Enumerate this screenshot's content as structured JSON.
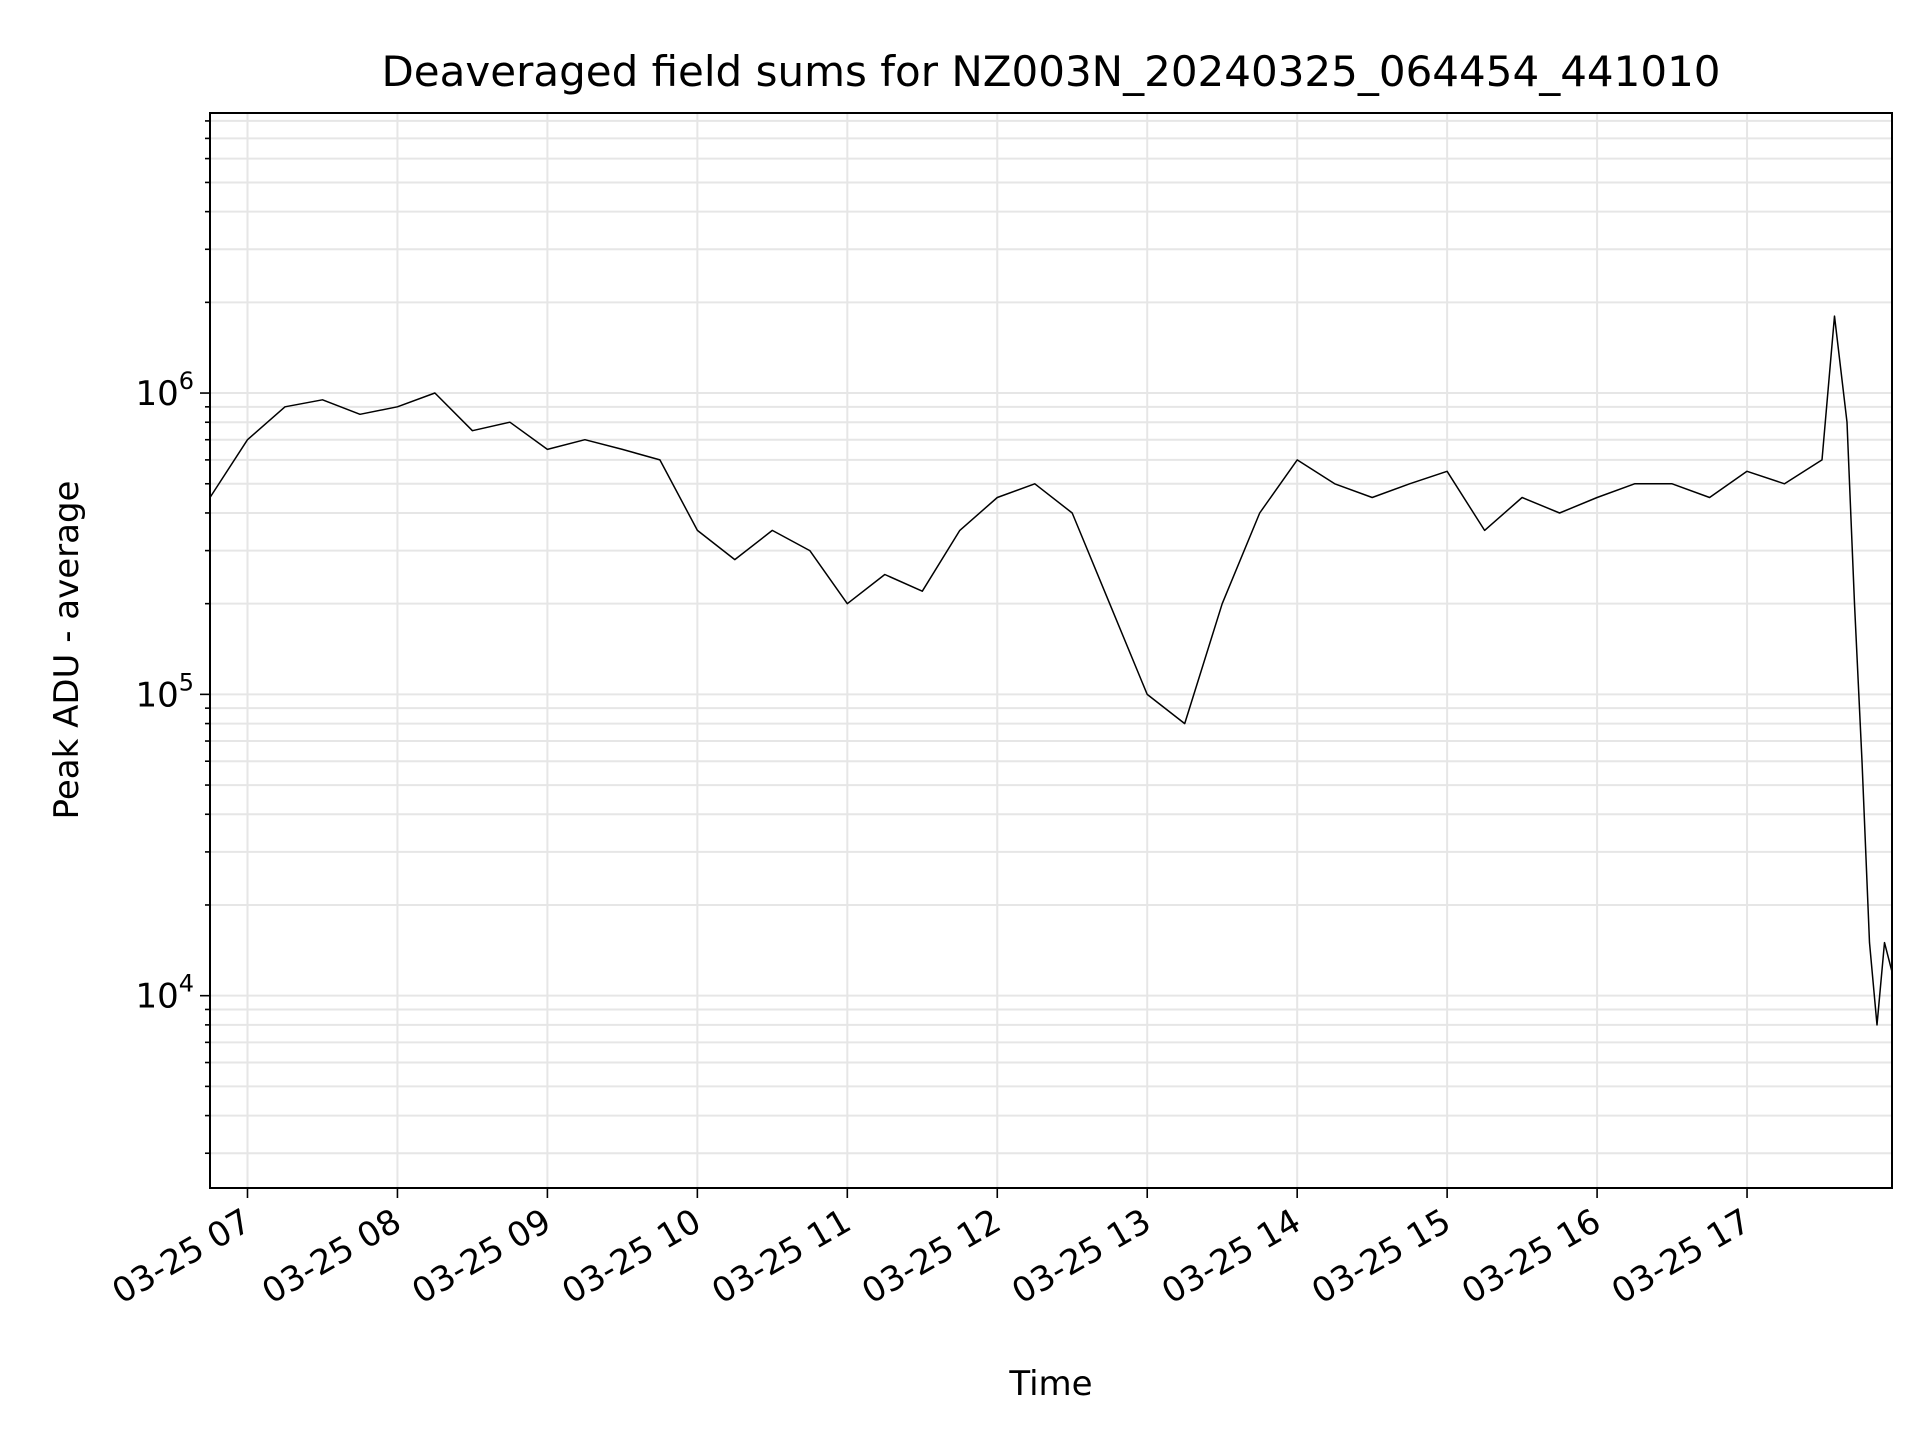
{
  "chart_data": {
    "type": "line",
    "title": "Deaveraged field sums for NZ003N_20240325_064454_441010",
    "xlabel": "Time",
    "ylabel": "Peak ADU - average",
    "y_scale": "log",
    "ylim": [
      2300,
      8500000
    ],
    "xlim": [
      "2024-03-25 06:45",
      "2024-03-25 17:58"
    ],
    "grid": true,
    "line_color": "#000000",
    "x_ticks": [
      {
        "value": "2024-03-25 07:00",
        "label": "03-25 07"
      },
      {
        "value": "2024-03-25 08:00",
        "label": "03-25 08"
      },
      {
        "value": "2024-03-25 09:00",
        "label": "03-25 09"
      },
      {
        "value": "2024-03-25 10:00",
        "label": "03-25 10"
      },
      {
        "value": "2024-03-25 11:00",
        "label": "03-25 11"
      },
      {
        "value": "2024-03-25 12:00",
        "label": "03-25 12"
      },
      {
        "value": "2024-03-25 13:00",
        "label": "03-25 13"
      },
      {
        "value": "2024-03-25 14:00",
        "label": "03-25 14"
      },
      {
        "value": "2024-03-25 15:00",
        "label": "03-25 15"
      },
      {
        "value": "2024-03-25 16:00",
        "label": "03-25 16"
      },
      {
        "value": "2024-03-25 17:00",
        "label": "03-25 17"
      }
    ],
    "y_ticks": [
      {
        "value": 10000,
        "base": "10",
        "exp": "4"
      },
      {
        "value": 100000,
        "base": "10",
        "exp": "5"
      },
      {
        "value": 1000000,
        "base": "10",
        "exp": "6"
      }
    ],
    "series": [
      {
        "x": [
          "2024-03-25 06:45",
          "2024-03-25 07:00",
          "2024-03-25 07:15",
          "2024-03-25 07:30",
          "2024-03-25 07:45",
          "2024-03-25 08:00",
          "2024-03-25 08:15",
          "2024-03-25 08:30",
          "2024-03-25 08:45",
          "2024-03-25 09:00",
          "2024-03-25 09:15",
          "2024-03-25 09:30",
          "2024-03-25 09:45",
          "2024-03-25 10:00",
          "2024-03-25 10:15",
          "2024-03-25 10:30",
          "2024-03-25 10:45",
          "2024-03-25 11:00",
          "2024-03-25 11:15",
          "2024-03-25 11:30",
          "2024-03-25 11:45",
          "2024-03-25 12:00",
          "2024-03-25 12:15",
          "2024-03-25 12:30",
          "2024-03-25 12:45",
          "2024-03-25 13:00",
          "2024-03-25 13:15",
          "2024-03-25 13:30",
          "2024-03-25 13:45",
          "2024-03-25 14:00",
          "2024-03-25 14:15",
          "2024-03-25 14:30",
          "2024-03-25 14:45",
          "2024-03-25 15:00",
          "2024-03-25 15:15",
          "2024-03-25 15:30",
          "2024-03-25 15:45",
          "2024-03-25 16:00",
          "2024-03-25 16:15",
          "2024-03-25 16:30",
          "2024-03-25 16:45",
          "2024-03-25 17:00",
          "2024-03-25 17:15",
          "2024-03-25 17:30",
          "2024-03-25 17:35",
          "2024-03-25 17:40",
          "2024-03-25 17:43",
          "2024-03-25 17:46",
          "2024-03-25 17:49",
          "2024-03-25 17:52",
          "2024-03-25 17:55",
          "2024-03-25 17:58"
        ],
        "values": [
          450000,
          700000,
          900000,
          950000,
          850000,
          900000,
          1000000,
          750000,
          800000,
          650000,
          700000,
          650000,
          600000,
          350000,
          280000,
          350000,
          300000,
          200000,
          250000,
          220000,
          350000,
          450000,
          500000,
          400000,
          200000,
          100000,
          80000,
          200000,
          400000,
          600000,
          500000,
          450000,
          500000,
          550000,
          350000,
          450000,
          400000,
          450000,
          500000,
          500000,
          450000,
          550000,
          500000,
          600000,
          1800000,
          800000,
          200000,
          60000,
          15000,
          8000,
          15000,
          12000
        ]
      }
    ]
  }
}
